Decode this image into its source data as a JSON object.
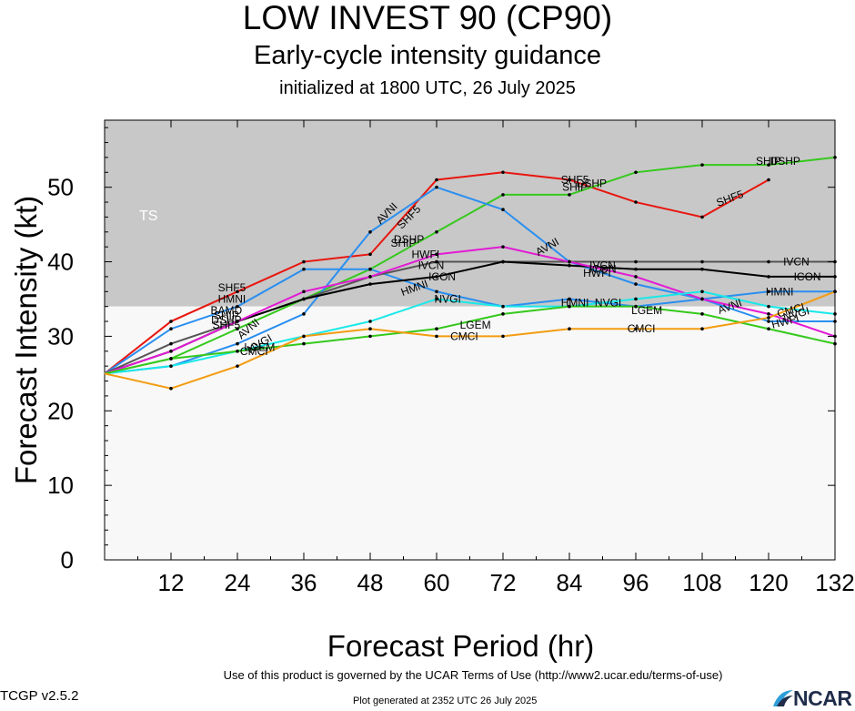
{
  "title": "LOW INVEST 90 (CP90)",
  "subtitle": "Early-cycle intensity guidance",
  "subtitle2": "initialized at 1800 UTC, 26 July 2025",
  "footer": {
    "terms": "Use of this product is governed by the UCAR Terms of Use (http://www2.ucar.edu/terms-of-use)",
    "version": "TCGP v2.5.2",
    "generated": "Plot generated at 2352 UTC   26 July 2025",
    "logo_text": "NCAR"
  },
  "chart_data": {
    "type": "line",
    "xlabel": "Forecast Period (hr)",
    "ylabel": "Forecast Intensity (kt)",
    "xlim": [
      0,
      132
    ],
    "ylim": [
      0,
      59
    ],
    "xticks": [
      12,
      24,
      36,
      48,
      60,
      72,
      84,
      96,
      108,
      120,
      132
    ],
    "yticks": [
      0,
      10,
      20,
      30,
      40,
      50
    ],
    "bands": [
      {
        "label": "TS",
        "from": 34,
        "to": 59,
        "color": "#c8c8c8"
      },
      {
        "label": "",
        "from": 0,
        "to": 34,
        "color": "#f8f8f8"
      }
    ],
    "series": [
      {
        "name": "SHF5",
        "color": "#e8160f",
        "x": [
          0,
          12,
          24,
          36,
          48,
          60,
          72,
          84,
          96,
          108,
          120
        ],
        "y": [
          25,
          32,
          36,
          40,
          41,
          51,
          52,
          51,
          48,
          46,
          51
        ],
        "labels": [
          {
            "x": 23,
            "y": 36.5
          },
          {
            "x": 55,
            "y": 46,
            "rot": -45
          },
          {
            "x": 85,
            "y": 51
          },
          {
            "x": 113,
            "y": 48.5,
            "rot": -20
          }
        ]
      },
      {
        "name": "DSHP",
        "color": "#35c91c",
        "x": [
          0,
          12,
          24,
          36,
          48,
          60,
          72,
          84,
          96,
          108,
          120,
          132
        ],
        "y": [
          25,
          27,
          31,
          35,
          39,
          44,
          49,
          49,
          52,
          53,
          53,
          54
        ],
        "labels": [
          {
            "x": 55,
            "y": 43
          },
          {
            "x": 88,
            "y": 50.5
          },
          {
            "x": 123,
            "y": 53.5
          }
        ]
      },
      {
        "name": "SHIP",
        "color": "#35c91c",
        "x": [],
        "y": [],
        "labels": [
          {
            "x": 54,
            "y": 42.5
          },
          {
            "x": 85,
            "y": 50
          },
          {
            "x": 120,
            "y": 53.5
          }
        ]
      },
      {
        "name": "AVNI",
        "color": "#2a8ff0",
        "x": [
          0,
          12,
          24,
          36,
          48,
          60,
          72,
          84,
          96,
          108,
          120,
          132
        ],
        "y": [
          25,
          26,
          29,
          33,
          44,
          50,
          47,
          40,
          37,
          35,
          32,
          32
        ],
        "labels": [
          {
            "x": 26,
            "y": 31,
            "rot": -40
          },
          {
            "x": 51,
            "y": 46.5,
            "rot": -45
          },
          {
            "x": 80,
            "y": 42,
            "rot": -30
          },
          {
            "x": 113,
            "y": 34,
            "rot": -20
          }
        ]
      },
      {
        "name": "HMNI",
        "color": "#2a8ff0",
        "x": [
          0,
          12,
          24,
          36,
          48,
          60,
          72,
          84,
          96,
          108,
          120,
          132
        ],
        "y": [
          25,
          31,
          34,
          39,
          39,
          36,
          34,
          35,
          34,
          35,
          36,
          36
        ],
        "labels": [
          {
            "x": 23,
            "y": 35
          },
          {
            "x": 56,
            "y": 36.5,
            "rot": -20
          },
          {
            "x": 85,
            "y": 34.5
          },
          {
            "x": 122,
            "y": 36
          }
        ]
      },
      {
        "name": "IVCN",
        "color": "#555555",
        "x": [
          0,
          12,
          24,
          36,
          48,
          60,
          72,
          84,
          96,
          108,
          120,
          132
        ],
        "y": [
          25,
          29,
          32,
          35,
          38,
          40,
          40,
          40,
          40,
          40,
          40,
          40
        ],
        "labels": [
          {
            "x": 59,
            "y": 39.5
          },
          {
            "x": 90,
            "y": 39.5
          },
          {
            "x": 125,
            "y": 40
          }
        ]
      },
      {
        "name": "ICON",
        "color": "#000000",
        "x": [
          0,
          12,
          24,
          36,
          48,
          60,
          72,
          84,
          96,
          108,
          120,
          132
        ],
        "y": [
          25,
          28,
          32,
          35,
          37,
          38,
          40,
          39.5,
          39,
          39,
          38,
          38
        ],
        "labels": [
          {
            "x": 61,
            "y": 38
          },
          {
            "x": 90,
            "y": 39
          },
          {
            "x": 127,
            "y": 38
          }
        ]
      },
      {
        "name": "HWFI",
        "color": "#e21ad4",
        "x": [
          0,
          12,
          24,
          36,
          48,
          60,
          72,
          84,
          96,
          108,
          120,
          132
        ],
        "y": [
          25,
          28,
          32,
          36,
          38,
          41,
          42,
          40,
          38,
          35,
          33,
          30
        ],
        "labels": [
          {
            "x": 58,
            "y": 41
          },
          {
            "x": 89,
            "y": 38.5
          },
          {
            "x": 123,
            "y": 32,
            "rot": -15
          }
        ]
      },
      {
        "name": "NVGI",
        "color": "#19e8e8",
        "x": [
          0,
          12,
          24,
          36,
          48,
          60,
          72,
          84,
          96,
          108,
          120,
          132
        ],
        "y": [
          25,
          26,
          28,
          30,
          32,
          35,
          34,
          34,
          35,
          36,
          34,
          33
        ],
        "labels": [
          {
            "x": 28,
            "y": 29,
            "rot": -30
          },
          {
            "x": 62,
            "y": 35
          },
          {
            "x": 91,
            "y": 34.5
          },
          {
            "x": 125,
            "y": 33,
            "rot": -15
          }
        ]
      },
      {
        "name": "LGEM",
        "color": "#35c91c",
        "x": [
          0,
          12,
          24,
          36,
          48,
          60,
          72,
          84,
          96,
          108,
          120,
          132
        ],
        "y": [
          25,
          27,
          28,
          29,
          30,
          31,
          33,
          34,
          34,
          33,
          31,
          29
        ],
        "labels": [
          {
            "x": 28,
            "y": 28.5
          },
          {
            "x": 67,
            "y": 31.5
          },
          {
            "x": 98,
            "y": 33.5
          }
        ]
      },
      {
        "name": "CMCI",
        "color": "#f39c11",
        "x": [
          0,
          12,
          24,
          36,
          48,
          60,
          72,
          84,
          96,
          108,
          120,
          132
        ],
        "y": [
          25,
          23,
          26,
          30,
          31,
          30,
          30,
          31,
          31,
          31,
          32.5,
          36
        ],
        "labels": [
          {
            "x": 27,
            "y": 28
          },
          {
            "x": 65,
            "y": 30
          },
          {
            "x": 97,
            "y": 31
          },
          {
            "x": 124,
            "y": 33.5,
            "rot": -15
          }
        ]
      }
    ],
    "extra_labels": [
      {
        "text": "BAMD",
        "x": 22,
        "y": 33.5
      },
      {
        "text": "SHIP",
        "x": 22,
        "y": 32.8
      },
      {
        "text": "DSHP",
        "x": 22,
        "y": 32.2
      },
      {
        "text": "SHF5",
        "x": 22,
        "y": 31.5
      }
    ]
  }
}
